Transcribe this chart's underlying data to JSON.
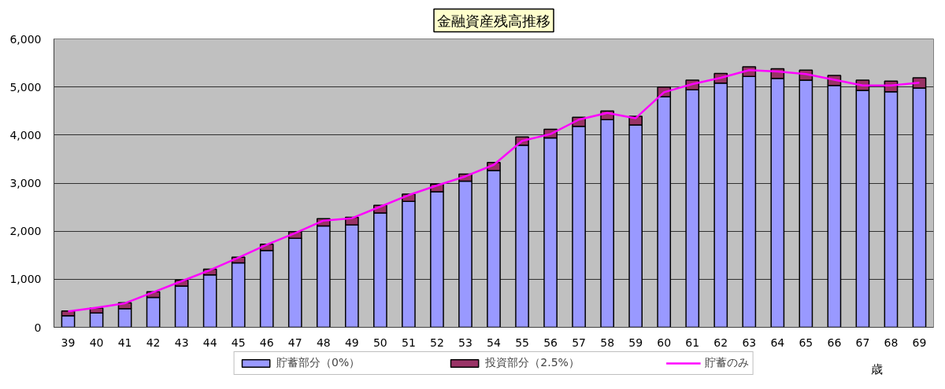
{
  "chart_data": {
    "type": "bar",
    "title": "金融資産残高推移",
    "xlabel": "歳",
    "categories": [
      "39",
      "40",
      "41",
      "42",
      "43",
      "44",
      "45",
      "46",
      "47",
      "48",
      "49",
      "50",
      "51",
      "52",
      "53",
      "54",
      "55",
      "56",
      "57",
      "58",
      "59",
      "60",
      "61",
      "62",
      "63",
      "64",
      "65",
      "66",
      "67",
      "68",
      "69"
    ],
    "series": [
      {
        "name": "貯蓄部分（0%）",
        "color": "#9999ff",
        "values": [
          240,
          300,
          390,
          620,
          860,
          1090,
          1340,
          1600,
          1850,
          2110,
          2130,
          2380,
          2620,
          2820,
          3040,
          3260,
          3790,
          3940,
          4180,
          4320,
          4210,
          4800,
          4940,
          5080,
          5220,
          5180,
          5140,
          5030,
          4930,
          4900,
          4980
        ]
      },
      {
        "name": "投資部分（2.5%）",
        "color": "#993366",
        "values": [
          100,
          100,
          120,
          120,
          120,
          120,
          120,
          130,
          140,
          150,
          160,
          160,
          150,
          160,
          150,
          170,
          170,
          180,
          190,
          180,
          180,
          200,
          200,
          200,
          200,
          200,
          210,
          210,
          210,
          220,
          210
        ]
      },
      {
        "name": "貯蓄のみ",
        "type": "line",
        "color": "#ff00ff",
        "values": [
          330,
          410,
          500,
          730,
          960,
          1190,
          1450,
          1720,
          1960,
          2220,
          2270,
          2510,
          2750,
          2950,
          3140,
          3380,
          3880,
          4020,
          4320,
          4460,
          4350,
          4890,
          5060,
          5190,
          5350,
          5320,
          5270,
          5150,
          5030,
          5030,
          5090
        ]
      }
    ],
    "stacked": true,
    "ylim": [
      0,
      6000
    ],
    "yticks": [
      0,
      {
        "value": 1000,
        "label": "1,000"
      },
      {
        "value": 2000,
        "label": "2,000"
      },
      {
        "value": 3000,
        "label": "3,000"
      },
      {
        "value": 4000,
        "label": "4,000"
      },
      {
        "value": 5000,
        "label": "5,000"
      },
      {
        "value": 6000,
        "label": "6,000"
      }
    ],
    "grid": "y",
    "legend": "bottom"
  }
}
